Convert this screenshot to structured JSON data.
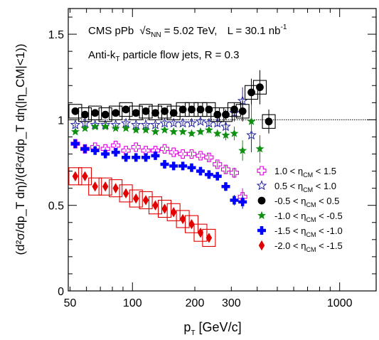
{
  "chart_data": {
    "type": "scatter",
    "title": "",
    "annotations": {
      "experiment": "CMS pPb",
      "energy_label": "√s",
      "energy_sub": "NN",
      "energy_value": " = 5.02 TeV,",
      "lumi_label": "L = 30.1 nb",
      "lumi_sup": "-1",
      "jet_prefix": "Anti-k",
      "jet_sub": "T",
      "jet_suffix": " particle flow jets, R = 0.3"
    },
    "xlabel": {
      "main": "p",
      "sub": "T",
      "rest": " [GeV/c]"
    },
    "ylabel": "(d²σ/dp_T dη)/(d²σ/dp_T dη(|η_CM|<1))",
    "x_scale": "log",
    "xlim": [
      49,
      1500
    ],
    "ylim": [
      0,
      1.65
    ],
    "x_ticks": [
      {
        "value": 50,
        "label": "50"
      },
      {
        "value": 100,
        "label": "100"
      },
      {
        "value": 200,
        "label": "200"
      },
      {
        "value": 300,
        "label": "300"
      },
      {
        "value": 1000,
        "label": "1000"
      }
    ],
    "y_ticks": [
      {
        "value": 0,
        "label": "0"
      },
      {
        "value": 0.5,
        "label": "0.5"
      },
      {
        "value": 1,
        "label": "1"
      },
      {
        "value": 1.5,
        "label": "1.5"
      }
    ],
    "reference_line": 1,
    "legend_position": "bottom-right",
    "series": [
      {
        "name": "1.0 < η_CM < 1.5",
        "legend_prefix": "1.0 < η",
        "legend_sub": "CM",
        "legend_suffix": " < 1.5",
        "color": "#e000e0",
        "marker": "open-cross",
        "x": [
          53,
          59,
          66,
          74,
          83,
          93,
          104,
          116,
          129,
          143,
          158,
          175,
          193,
          213,
          234,
          257,
          282,
          310,
          340
        ],
        "y": [
          0.86,
          0.83,
          0.84,
          0.83,
          0.85,
          0.82,
          0.84,
          0.82,
          0.82,
          0.83,
          0.81,
          0.8,
          0.8,
          0.79,
          0.78,
          0.74,
          0.71,
          0.69,
          0.55
        ],
        "yerr": [
          0.01,
          0.01,
          0.01,
          0.01,
          0.01,
          0.01,
          0.01,
          0.01,
          0.01,
          0.01,
          0.01,
          0.01,
          0.015,
          0.015,
          0.02,
          0.02,
          0.025,
          0.03,
          0.05
        ]
      },
      {
        "name": "0.5 < η_CM < 1.0",
        "legend_prefix": "0.5 < η",
        "legend_sub": "CM",
        "legend_suffix": " < 1.0",
        "color": "#2020a0",
        "marker": "open-star",
        "x": [
          53,
          59,
          66,
          74,
          83,
          93,
          104,
          116,
          129,
          143,
          158,
          175,
          193,
          213,
          234,
          257,
          282,
          310,
          340,
          375
        ],
        "y": [
          0.97,
          0.98,
          0.97,
          0.97,
          0.97,
          0.98,
          0.97,
          0.97,
          0.97,
          0.98,
          0.98,
          0.98,
          0.98,
          0.99,
          0.98,
          0.98,
          0.96,
          1.04,
          1.11,
          0.91
        ],
        "yerr": [
          0.01,
          0.01,
          0.01,
          0.01,
          0.01,
          0.01,
          0.01,
          0.01,
          0.01,
          0.01,
          0.01,
          0.01,
          0.015,
          0.015,
          0.02,
          0.02,
          0.03,
          0.05,
          0.08,
          0.1
        ]
      },
      {
        "name": "-0.5 < η_CM < 0.5",
        "legend_prefix": "-0.5 < η",
        "legend_sub": "CM",
        "legend_suffix": " < 0.5",
        "color": "#000000",
        "marker": "filled-circle",
        "syst_box": true,
        "syst": 0.04,
        "x": [
          53,
          59,
          66,
          74,
          83,
          93,
          104,
          116,
          129,
          143,
          158,
          175,
          193,
          213,
          234,
          257,
          282,
          310,
          340,
          375,
          412,
          455
        ],
        "y": [
          1.05,
          1.03,
          1.04,
          1.03,
          1.04,
          1.06,
          1.04,
          1.05,
          1.04,
          1.05,
          1.04,
          1.06,
          1.06,
          1.06,
          1.06,
          1.03,
          1.03,
          1.06,
          1.05,
          1.16,
          1.19,
          0.99
        ],
        "yerr": [
          0.01,
          0.01,
          0.01,
          0.01,
          0.01,
          0.01,
          0.01,
          0.01,
          0.01,
          0.01,
          0.01,
          0.01,
          0.015,
          0.015,
          0.02,
          0.02,
          0.03,
          0.04,
          0.06,
          0.08,
          0.1,
          0.07
        ]
      },
      {
        "name": "-1.0 < η_CM < -0.5",
        "legend_prefix": "-1.0 < η",
        "legend_sub": "CM",
        "legend_suffix": " < -0.5",
        "color": "#109010",
        "marker": "filled-star",
        "x": [
          53,
          59,
          66,
          74,
          83,
          93,
          104,
          116,
          129,
          143,
          158,
          175,
          193,
          213,
          234,
          257,
          282,
          310,
          340,
          375,
          412
        ],
        "y": [
          0.93,
          0.95,
          0.96,
          0.96,
          0.95,
          0.95,
          0.94,
          0.94,
          0.93,
          0.94,
          0.93,
          0.93,
          0.92,
          0.93,
          0.94,
          0.92,
          0.91,
          0.92,
          0.82,
          0.99,
          0.83
        ],
        "yerr": [
          0.01,
          0.01,
          0.01,
          0.01,
          0.01,
          0.01,
          0.01,
          0.01,
          0.01,
          0.01,
          0.01,
          0.01,
          0.015,
          0.015,
          0.02,
          0.02,
          0.03,
          0.04,
          0.06,
          0.1,
          0.08
        ]
      },
      {
        "name": "-1.5 < η_CM < -1.0",
        "legend_prefix": "-1.5 < η",
        "legend_sub": "CM",
        "legend_suffix": " < -1.0",
        "color": "#0000ff",
        "marker": "filled-cross",
        "x": [
          53,
          59,
          66,
          74,
          83,
          93,
          104,
          116,
          129,
          143,
          158,
          175,
          193,
          213,
          234,
          257,
          282,
          310,
          340
        ],
        "y": [
          0.86,
          0.83,
          0.82,
          0.8,
          0.81,
          0.78,
          0.78,
          0.78,
          0.79,
          0.74,
          0.73,
          0.73,
          0.72,
          0.7,
          0.68,
          0.67,
          0.61,
          0.53,
          0.52
        ],
        "yerr": [
          0.01,
          0.01,
          0.01,
          0.01,
          0.01,
          0.01,
          0.01,
          0.01,
          0.01,
          0.01,
          0.01,
          0.01,
          0.015,
          0.015,
          0.02,
          0.02,
          0.025,
          0.03,
          0.04
        ]
      },
      {
        "name": "-2.0 < η_CM < -1.5",
        "legend_prefix": "-2.0 < η",
        "legend_sub": "CM",
        "legend_suffix": " < -1.5",
        "color": "#e00000",
        "marker": "filled-diamond",
        "syst_box": true,
        "syst": 0.05,
        "x": [
          53,
          59,
          66,
          74,
          83,
          93,
          104,
          116,
          129,
          143,
          158,
          175,
          193,
          213,
          234
        ],
        "y": [
          0.67,
          0.67,
          0.61,
          0.61,
          0.6,
          0.57,
          0.54,
          0.53,
          0.5,
          0.48,
          0.46,
          0.42,
          0.39,
          0.34,
          0.31
        ],
        "yerr": [
          0.01,
          0.01,
          0.01,
          0.01,
          0.01,
          0.01,
          0.01,
          0.01,
          0.01,
          0.01,
          0.01,
          0.01,
          0.015,
          0.015,
          0.02
        ]
      }
    ]
  }
}
